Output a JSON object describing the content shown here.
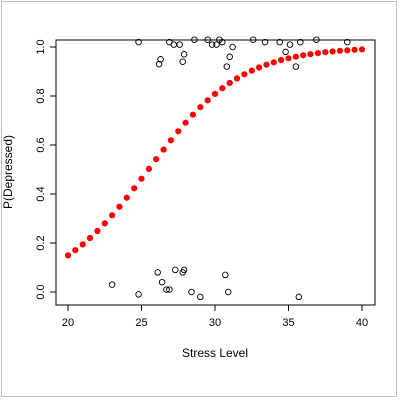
{
  "chart_data": {
    "type": "scatter",
    "xlabel": "Stress Level",
    "ylabel": "P(Depressed)",
    "xlim": [
      20,
      40
    ],
    "ylim": [
      -0.02,
      1.03
    ],
    "x_ticks": [
      20,
      25,
      30,
      35,
      40
    ],
    "y_ticks": [
      0.0,
      0.2,
      0.4,
      0.6,
      0.8,
      1.0
    ],
    "x_tick_labels": [
      "20",
      "25",
      "30",
      "35",
      "40"
    ],
    "y_tick_labels": [
      "0.0",
      "0.2",
      "0.4",
      "0.6",
      "0.8",
      "1.0"
    ],
    "grid": false,
    "legend": "none",
    "series": [
      {
        "type": "scatter",
        "marker": "open-circle",
        "color": "#000000",
        "points": [
          [
            23.0,
            0.03
          ],
          [
            24.8,
            -0.01
          ],
          [
            26.1,
            0.08
          ],
          [
            26.4,
            0.04
          ],
          [
            26.7,
            0.01
          ],
          [
            26.9,
            0.01
          ],
          [
            27.3,
            0.09
          ],
          [
            27.8,
            0.08
          ],
          [
            27.9,
            0.09
          ],
          [
            28.4,
            0.0
          ],
          [
            29.0,
            -0.02
          ],
          [
            30.7,
            0.07
          ],
          [
            30.9,
            0.0
          ],
          [
            35.7,
            -0.02
          ],
          [
            24.8,
            1.02
          ],
          [
            26.3,
            0.95
          ],
          [
            26.2,
            0.93
          ],
          [
            26.9,
            1.02
          ],
          [
            27.2,
            1.01
          ],
          [
            27.6,
            1.01
          ],
          [
            27.8,
            0.94
          ],
          [
            27.9,
            0.97
          ],
          [
            28.6,
            1.03
          ],
          [
            29.5,
            1.03
          ],
          [
            29.8,
            1.01
          ],
          [
            30.1,
            1.01
          ],
          [
            30.3,
            1.03
          ],
          [
            30.5,
            1.02
          ],
          [
            30.8,
            0.92
          ],
          [
            31.0,
            0.96
          ],
          [
            31.2,
            1.0
          ],
          [
            32.6,
            1.03
          ],
          [
            33.4,
            1.02
          ],
          [
            34.4,
            1.02
          ],
          [
            34.8,
            0.98
          ],
          [
            35.1,
            1.01
          ],
          [
            35.5,
            0.92
          ],
          [
            35.8,
            1.02
          ],
          [
            36.9,
            1.03
          ],
          [
            39.0,
            1.02
          ]
        ]
      },
      {
        "type": "scatter",
        "marker": "filled-circle",
        "color": "#ff0000",
        "curve": {
          "model": "logistic",
          "intercept": -8.1,
          "slope": 0.318,
          "x_start": 20,
          "x_end": 40,
          "step": 0.5
        }
      }
    ]
  }
}
